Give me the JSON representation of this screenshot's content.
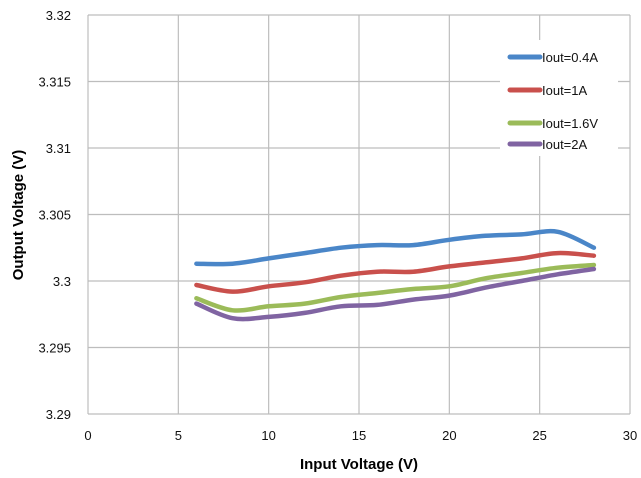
{
  "chart_data": {
    "type": "line",
    "xlabel": "Input Voltage (V)",
    "ylabel": "Output Voltage (V)",
    "xlim": [
      0,
      30
    ],
    "ylim": [
      3.29,
      3.32
    ],
    "x_ticks": [
      "0",
      "5",
      "10",
      "15",
      "20",
      "25",
      "30"
    ],
    "y_ticks": [
      "3.29",
      "3.295",
      "3.3",
      "3.305",
      "3.31",
      "3.315",
      "3.32"
    ],
    "grid": true,
    "legend_position": "top-right",
    "series": [
      {
        "name": "Iout=0.4A",
        "color": "#4a86c8",
        "x": [
          6,
          8,
          10,
          12,
          14,
          16,
          18,
          20,
          22,
          24,
          26,
          28
        ],
        "y": [
          3.3013,
          3.3013,
          3.3017,
          3.3021,
          3.3025,
          3.3027,
          3.3027,
          3.3031,
          3.3034,
          3.3035,
          3.3037,
          3.3025
        ]
      },
      {
        "name": "Iout=1A",
        "color": "#c9504c",
        "x": [
          6,
          8,
          10,
          12,
          14,
          16,
          18,
          20,
          22,
          24,
          26,
          28
        ],
        "y": [
          3.2997,
          3.2992,
          3.2996,
          3.2999,
          3.3004,
          3.3007,
          3.3007,
          3.3011,
          3.3014,
          3.3017,
          3.3021,
          3.3019
        ]
      },
      {
        "name": "Iout=1.6V",
        "color": "#9bbb59",
        "x": [
          6,
          8,
          10,
          12,
          14,
          16,
          18,
          20,
          22,
          24,
          26,
          28
        ],
        "y": [
          3.2987,
          3.2978,
          3.2981,
          3.2983,
          3.2988,
          3.2991,
          3.2994,
          3.2996,
          3.3002,
          3.3006,
          3.301,
          3.3012
        ]
      },
      {
        "name": "Iout=2A",
        "color": "#8064a2",
        "x": [
          6,
          8,
          10,
          12,
          14,
          16,
          18,
          20,
          22,
          24,
          26,
          28
        ],
        "y": [
          3.2983,
          3.2972,
          3.2973,
          3.2976,
          3.2981,
          3.2982,
          3.2986,
          3.2989,
          3.2995,
          3.3,
          3.3005,
          3.3009
        ]
      }
    ]
  }
}
